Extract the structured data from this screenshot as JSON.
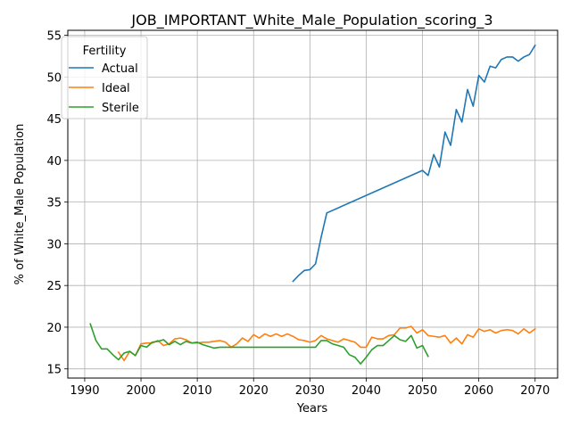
{
  "chart_data": {
    "type": "line",
    "title": "JOB_IMPORTANT_White_Male_Population_scoring_3",
    "xlabel": "Years",
    "ylabel": "% of White_Male Population",
    "xlim": [
      1987,
      2074
    ],
    "ylim": [
      13.9,
      55.6
    ],
    "xticks": [
      1990,
      2000,
      2010,
      2020,
      2030,
      2040,
      2050,
      2060,
      2070
    ],
    "yticks": [
      15,
      20,
      25,
      30,
      35,
      40,
      45,
      50,
      55
    ],
    "grid": true,
    "legend": {
      "title": "Fertility",
      "position": "top-left"
    },
    "series": [
      {
        "name": "Actual",
        "color": "#1f77b4",
        "x": [
          2027,
          2028,
          2029,
          2030,
          2031,
          2032,
          2033,
          2050,
          2051,
          2052,
          2053,
          2054,
          2055,
          2056,
          2057,
          2058,
          2059,
          2060,
          2061,
          2062,
          2063,
          2064,
          2065,
          2066,
          2067,
          2068,
          2069,
          2070
        ],
        "y": [
          25.5,
          26.2,
          26.8,
          26.9,
          27.6,
          30.8,
          33.7,
          38.8,
          38.2,
          40.7,
          39.2,
          43.4,
          41.8,
          46.1,
          44.6,
          48.5,
          46.5,
          50.2,
          49.4,
          51.3,
          51.1,
          52.1,
          52.4,
          52.4,
          51.9,
          52.4,
          52.7,
          53.8
        ]
      },
      {
        "name": "Ideal",
        "color": "#ff7f0e",
        "x": [
          1996,
          1997,
          1998,
          1999,
          2000,
          2001,
          2002,
          2003,
          2004,
          2005,
          2006,
          2007,
          2008,
          2009,
          2010,
          2011,
          2012,
          2013,
          2014,
          2015,
          2016,
          2017,
          2018,
          2019,
          2020,
          2021,
          2022,
          2023,
          2024,
          2025,
          2026,
          2027,
          2028,
          2029,
          2030,
          2031,
          2032,
          2033,
          2034,
          2035,
          2036,
          2037,
          2038,
          2039,
          2040,
          2041,
          2042,
          2043,
          2044,
          2045,
          2046,
          2047,
          2048,
          2049,
          2050,
          2051,
          2052,
          2053,
          2054,
          2055,
          2056,
          2057,
          2058,
          2059,
          2060,
          2061,
          2062,
          2063,
          2064,
          2065,
          2066,
          2067,
          2068,
          2069,
          2070
        ],
        "y": [
          17.0,
          16.0,
          17.1,
          16.6,
          18.0,
          18.1,
          18.1,
          18.4,
          17.8,
          18.0,
          18.6,
          18.7,
          18.5,
          18.1,
          18.1,
          18.2,
          18.2,
          18.3,
          18.4,
          18.2,
          17.6,
          18.0,
          18.7,
          18.3,
          19.1,
          18.7,
          19.2,
          18.9,
          19.2,
          18.9,
          19.2,
          18.9,
          18.5,
          18.4,
          18.2,
          18.4,
          19.0,
          18.6,
          18.4,
          18.2,
          18.6,
          18.4,
          18.2,
          17.6,
          17.6,
          18.8,
          18.6,
          18.6,
          19.0,
          19.1,
          19.9,
          19.9,
          20.1,
          19.3,
          19.7,
          19.0,
          18.9,
          18.8,
          19.0,
          18.1,
          18.7,
          18.0,
          19.1,
          18.8,
          19.8,
          19.5,
          19.7,
          19.3,
          19.6,
          19.7,
          19.6,
          19.2,
          19.8,
          19.3,
          19.8
        ]
      },
      {
        "name": "Sterile",
        "color": "#2ca02c",
        "x": [
          1991,
          1992,
          1993,
          1994,
          1995,
          1996,
          1997,
          1998,
          1999,
          2000,
          2001,
          2002,
          2003,
          2004,
          2005,
          2006,
          2007,
          2008,
          2009,
          2010,
          2011,
          2012,
          2013,
          2014,
          2015,
          2016,
          2017,
          2018,
          2019,
          2020,
          2021,
          2022,
          2023,
          2024,
          2025,
          2026,
          2027,
          2028,
          2029,
          2030,
          2031,
          2032,
          2033,
          2034,
          2035,
          2036,
          2037,
          2038,
          2039,
          2040,
          2041,
          2042,
          2043,
          2044,
          2045,
          2046,
          2047,
          2048,
          2049,
          2050,
          2051
        ],
        "y": [
          20.4,
          18.4,
          17.4,
          17.4,
          16.7,
          16.1,
          16.9,
          17.1,
          16.6,
          17.8,
          17.6,
          18.2,
          18.3,
          18.5,
          17.9,
          18.3,
          17.9,
          18.3,
          18.1,
          18.2,
          17.9,
          17.7,
          17.5,
          17.6,
          17.6,
          17.6,
          17.6,
          17.6,
          17.6,
          17.6,
          17.6,
          17.6,
          17.6,
          17.6,
          17.6,
          17.6,
          17.6,
          17.6,
          17.6,
          17.6,
          17.6,
          18.4,
          18.4,
          18.0,
          17.8,
          17.6,
          16.7,
          16.4,
          15.6,
          16.4,
          17.3,
          17.8,
          17.8,
          18.4,
          19.0,
          18.5,
          18.3,
          19.0,
          17.5,
          17.8,
          16.5
        ]
      }
    ]
  }
}
